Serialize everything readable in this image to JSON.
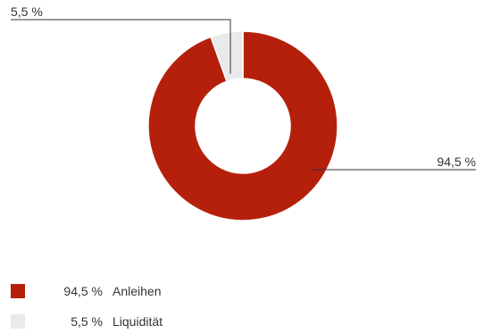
{
  "chart_data": {
    "type": "pie",
    "donut": true,
    "slices": [
      {
        "name": "Anleihen",
        "value": 94.5,
        "label": "94,5 %",
        "color": "#b5200c"
      },
      {
        "name": "Liquidität",
        "value": 5.5,
        "label": "5,5 %",
        "color": "#e9eaeb"
      }
    ]
  },
  "legend": {
    "items": [
      {
        "value": "94,5 %",
        "label": "Anleihen",
        "color": "#b5200c"
      },
      {
        "value": "5,5 %",
        "label": "Liquidität",
        "color": "#e9eaeb"
      }
    ]
  }
}
